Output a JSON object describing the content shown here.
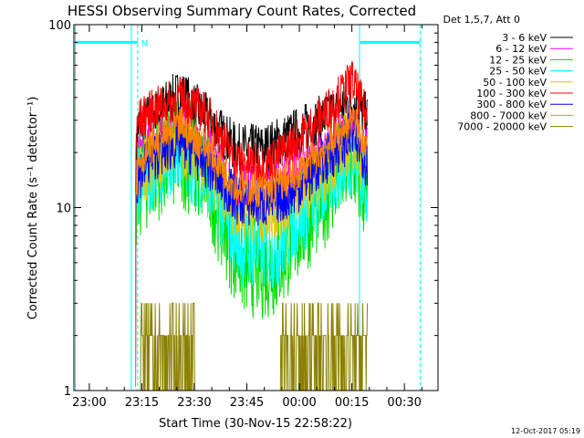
{
  "chart_data": {
    "type": "line",
    "title": "HESSI Observing Summary Count Rates, Corrected",
    "xlabel": "Start Time (30-Nov-15 22:58:22)",
    "ylabel": "Corrected Count Rate (s⁻¹ detector⁻¹)",
    "y_scale": "log",
    "ylim": [
      1,
      100
    ],
    "y_ticks": [
      {
        "value": 1,
        "label": "1"
      },
      {
        "value": 10,
        "label": "10"
      },
      {
        "value": 100,
        "label": "100"
      }
    ],
    "x_ticks": [
      "23:00",
      "23:15",
      "23:30",
      "23:45",
      "00:00",
      "00:15",
      "00:30"
    ],
    "x_tick_minutes": [
      0,
      15,
      30,
      45,
      60,
      75,
      90
    ],
    "xlim_minutes": [
      -4.4,
      99.6
    ],
    "legend_header": "Det 1,5,7, Att 0",
    "legend_position": "top-right",
    "series": [
      {
        "name": "3 - 6 keV",
        "color": "#000000",
        "profile": [
          [
            13.3,
            18
          ],
          [
            14,
            28
          ],
          [
            18,
            32
          ],
          [
            26,
            42
          ],
          [
            34,
            30
          ],
          [
            42,
            21
          ],
          [
            50,
            21
          ],
          [
            58,
            25
          ],
          [
            66,
            30
          ],
          [
            72,
            36
          ],
          [
            75,
            38
          ],
          [
            78,
            33
          ],
          [
            79.5,
            30
          ]
        ],
        "noise": 0.14
      },
      {
        "name": "6 - 12 keV",
        "color": "#ff00ff",
        "profile": [
          [
            13.3,
            14
          ],
          [
            14,
            20
          ],
          [
            18,
            22
          ],
          [
            26,
            26
          ],
          [
            34,
            20
          ],
          [
            42,
            13
          ],
          [
            50,
            12.5
          ],
          [
            58,
            14.5
          ],
          [
            66,
            19
          ],
          [
            72,
            24
          ],
          [
            75,
            27
          ],
          [
            78,
            22
          ],
          [
            79.5,
            20
          ]
        ],
        "noise": 0.14
      },
      {
        "name": "12 - 25 keV",
        "color": "#00dd00",
        "profile": [
          [
            13.3,
            9
          ],
          [
            14,
            13
          ],
          [
            18,
            16
          ],
          [
            26,
            20
          ],
          [
            34,
            14
          ],
          [
            40,
            7
          ],
          [
            44,
            5
          ],
          [
            50,
            4.8
          ],
          [
            54,
            5
          ],
          [
            58,
            7
          ],
          [
            66,
            11
          ],
          [
            72,
            16
          ],
          [
            75,
            18
          ],
          [
            78,
            14
          ],
          [
            79.5,
            11
          ]
        ],
        "noise": 0.3
      },
      {
        "name": "25 - 50 keV",
        "color": "#00ffff",
        "profile": [
          [
            13.3,
            10
          ],
          [
            14,
            13
          ],
          [
            18,
            16
          ],
          [
            26,
            20
          ],
          [
            34,
            14
          ],
          [
            40,
            8
          ],
          [
            44,
            6
          ],
          [
            50,
            5.8
          ],
          [
            54,
            6
          ],
          [
            58,
            8
          ],
          [
            66,
            12
          ],
          [
            72,
            17
          ],
          [
            75,
            19
          ],
          [
            78,
            15
          ],
          [
            79.5,
            13
          ]
        ],
        "noise": 0.22
      },
      {
        "name": "50 - 100 keV",
        "color": "#e6c800",
        "profile": [
          [
            13.3,
            11
          ],
          [
            14,
            14
          ],
          [
            18,
            18
          ],
          [
            26,
            22
          ],
          [
            34,
            16
          ],
          [
            42,
            10
          ],
          [
            50,
            9.5
          ],
          [
            58,
            11
          ],
          [
            66,
            15
          ],
          [
            72,
            21
          ],
          [
            75,
            24
          ],
          [
            78,
            18
          ],
          [
            79.5,
            15
          ]
        ],
        "noise": 0.18
      },
      {
        "name": "100 - 300 keV",
        "color": "#ff0000",
        "profile": [
          [
            13.3,
            22
          ],
          [
            14,
            30
          ],
          [
            18,
            34
          ],
          [
            26,
            40
          ],
          [
            34,
            32
          ],
          [
            42,
            18
          ],
          [
            50,
            17
          ],
          [
            58,
            22
          ],
          [
            66,
            31
          ],
          [
            72,
            42
          ],
          [
            75,
            50
          ],
          [
            78,
            36
          ],
          [
            79.5,
            30
          ]
        ],
        "noise": 0.12
      },
      {
        "name": "300 - 800 keV",
        "color": "#0000ff",
        "profile": [
          [
            13.3,
            12
          ],
          [
            14,
            15
          ],
          [
            18,
            19
          ],
          [
            26,
            23
          ],
          [
            34,
            17
          ],
          [
            42,
            11
          ],
          [
            50,
            10.5
          ],
          [
            58,
            12
          ],
          [
            66,
            17
          ],
          [
            72,
            22
          ],
          [
            75,
            25
          ],
          [
            78,
            20
          ],
          [
            79.5,
            17
          ]
        ],
        "noise": 0.14
      },
      {
        "name": "800 - 7000 keV",
        "color": "#ff8000",
        "profile": [
          [
            13.3,
            14
          ],
          [
            14,
            18
          ],
          [
            18,
            22
          ],
          [
            26,
            28
          ],
          [
            34,
            21
          ],
          [
            42,
            13
          ],
          [
            50,
            12.5
          ],
          [
            58,
            14.5
          ],
          [
            66,
            20
          ],
          [
            72,
            26
          ],
          [
            75,
            31
          ],
          [
            78,
            24
          ],
          [
            79.5,
            22
          ]
        ],
        "noise": 0.1
      },
      {
        "name": "7000 - 20000 keV",
        "color": "#8b8000",
        "profile": [
          [
            14,
            1
          ],
          [
            79.5,
            1
          ]
        ],
        "noise": 0
      }
    ],
    "bursts": [
      [
        14.5,
        30
      ],
      [
        54.5,
        79.5
      ]
    ],
    "data_gap_minutes": [
      79.5,
      99.6
    ],
    "flag_bars": [
      {
        "label": "N",
        "start_minutes": -4,
        "end_minutes": 13.8,
        "level": 80,
        "color": "#00ffff"
      },
      {
        "label": "",
        "start_minutes": 77.2,
        "end_minutes": 94.5,
        "level": 80,
        "color": "#00ffff"
      }
    ],
    "boundaries": [
      {
        "minutes": -4,
        "style": "solid"
      },
      {
        "minutes": 12,
        "style": "solid"
      },
      {
        "minutes": 13.8,
        "style": "dashed"
      },
      {
        "minutes": 77.2,
        "style": "solid"
      },
      {
        "minutes": 94.5,
        "style": "dashed"
      }
    ],
    "grid": false,
    "axis_color": "#000000"
  },
  "footer": {
    "timestamp": "12-Oct-2017 05:19"
  }
}
